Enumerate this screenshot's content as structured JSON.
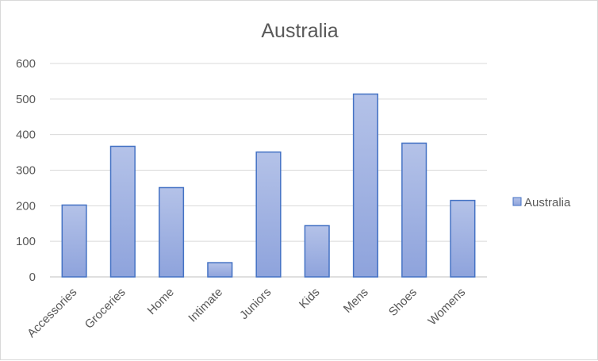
{
  "chart_data": {
    "type": "bar",
    "title": "Australia",
    "categories": [
      "Accessories",
      "Groceries",
      "Home",
      "Intimate",
      "Juniors",
      "Kids",
      "Mens",
      "Shoes",
      "Womens"
    ],
    "series": [
      {
        "name": "Australia",
        "values": [
          202,
          367,
          251,
          40,
          351,
          144,
          514,
          376,
          215
        ]
      }
    ],
    "ylim": [
      0,
      600
    ],
    "yticks": [
      "0",
      "100",
      "200",
      "300",
      "400",
      "500",
      "600"
    ],
    "xlabel": "",
    "ylabel": "",
    "grid": true,
    "legend": "right",
    "colors": {
      "bar_fill_top": "#b4c2e8",
      "bar_fill_bottom": "#8ea3dc",
      "bar_stroke": "#4472c4"
    }
  }
}
